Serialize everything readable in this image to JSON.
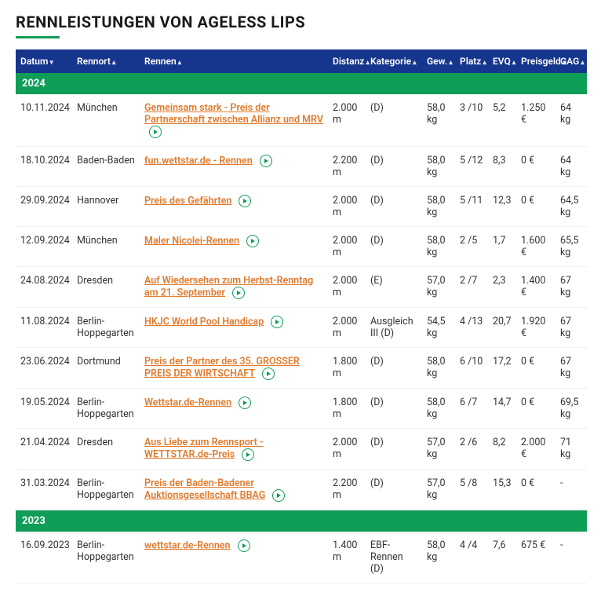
{
  "title": "RENNLEISTUNGEN VON AGELESS LIPS",
  "colors": {
    "header_bg": "#16358c",
    "accent": "#0f9d58",
    "link": "#e07b2e",
    "text": "#333333",
    "border": "#f0f0f0",
    "bg": "#ffffff"
  },
  "columns": [
    {
      "key": "datum",
      "label": "Datum",
      "sortDir": "desc"
    },
    {
      "key": "rennort",
      "label": "Rennort",
      "sortDir": "asc"
    },
    {
      "key": "rennen",
      "label": "Rennen",
      "sortDir": "asc"
    },
    {
      "key": "distanz",
      "label": "Distanz",
      "sortDir": "asc"
    },
    {
      "key": "kategorie",
      "label": "Kategorie",
      "sortDir": "asc"
    },
    {
      "key": "gew",
      "label": "Gew.",
      "sortDir": "asc"
    },
    {
      "key": "platz",
      "label": "Platz",
      "sortDir": "asc"
    },
    {
      "key": "evq",
      "label": "EVQ",
      "sortDir": "asc"
    },
    {
      "key": "preisgeld",
      "label": "Preisgeld",
      "sortDir": "asc"
    },
    {
      "key": "gag",
      "label": "GAG",
      "sortDir": "asc"
    }
  ],
  "groups": [
    {
      "year": "2024",
      "rows": [
        {
          "datum": "10.11.2024",
          "rennort": "München",
          "rennen": "Gemeinsam stark - Preis der Partnerschaft zwischen Allianz und MRV",
          "distanz": "2.000 m",
          "kategorie": "(D)",
          "gew": "58,0 kg",
          "platz": "3 /10",
          "evq": "5,2",
          "preisgeld": "1.250 €",
          "gag": "64 kg",
          "video": true
        },
        {
          "datum": "18.10.2024",
          "rennort": "Baden-Baden",
          "rennen": "fun.wettstar.de - Rennen",
          "distanz": "2.200 m",
          "kategorie": "(D)",
          "gew": "58,0 kg",
          "platz": "5 /12",
          "evq": "8,3",
          "preisgeld": "0 €",
          "gag": "64 kg",
          "video": true
        },
        {
          "datum": "29.09.2024",
          "rennort": "Hannover",
          "rennen": "Preis des Gefährten",
          "distanz": "2.000 m",
          "kategorie": "(D)",
          "gew": "58,0 kg",
          "platz": "5 /11",
          "evq": "12,3",
          "preisgeld": "0 €",
          "gag": "64,5 kg",
          "video": true
        },
        {
          "datum": "12.09.2024",
          "rennort": "München",
          "rennen": "Maler Nicolei-Rennen",
          "distanz": "2.000 m",
          "kategorie": "(D)",
          "gew": "58,0 kg",
          "platz": "2 /5",
          "evq": "1,7",
          "preisgeld": "1.600 €",
          "gag": "65,5 kg",
          "video": true
        },
        {
          "datum": "24.08.2024",
          "rennort": "Dresden",
          "rennen": "Auf Wiedersehen zum Herbst-Renntag am 21. September",
          "distanz": "2.000 m",
          "kategorie": "(E)",
          "gew": "57,0 kg",
          "platz": "2 /7",
          "evq": "2,3",
          "preisgeld": "1.400 €",
          "gag": "67 kg",
          "video": true
        },
        {
          "datum": "11.08.2024",
          "rennort": "Berlin-Hoppegarten",
          "rennen": "HKJC World Pool Handicap",
          "distanz": "2.000 m",
          "kategorie": "Ausgleich III (D)",
          "gew": "54,5 kg",
          "platz": "4 /13",
          "evq": "20,7",
          "preisgeld": "1.920 €",
          "gag": "67 kg",
          "video": true
        },
        {
          "datum": "23.06.2024",
          "rennort": "Dortmund",
          "rennen": "Preis der Partner des 35. GROSSER PREIS DER WIRTSCHAFT",
          "distanz": "1.800 m",
          "kategorie": "(D)",
          "gew": "58,0 kg",
          "platz": "6 /10",
          "evq": "17,2",
          "preisgeld": "0 €",
          "gag": "67 kg",
          "video": true
        },
        {
          "datum": "19.05.2024",
          "rennort": "Berlin-Hoppegarten",
          "rennen": "Wettstar.de-Rennen",
          "distanz": "1.800 m",
          "kategorie": "(D)",
          "gew": "58,0 kg",
          "platz": "6 /7",
          "evq": "14,7",
          "preisgeld": "0 €",
          "gag": "69,5 kg",
          "video": true
        },
        {
          "datum": "21.04.2024",
          "rennort": "Dresden",
          "rennen": "Aus Liebe zum Rennsport - WETTSTAR.de-Preis",
          "distanz": "2.000 m",
          "kategorie": "(D)",
          "gew": "57,0 kg",
          "platz": "2 /6",
          "evq": "8,2",
          "preisgeld": "2.000 €",
          "gag": "71 kg",
          "video": true
        },
        {
          "datum": "31.03.2024",
          "rennort": "Berlin-Hoppegarten",
          "rennen": "Preis der Baden-Badener Auktionsgesellschaft BBAG",
          "distanz": "2.200 m",
          "kategorie": "(D)",
          "gew": "57,0 kg",
          "platz": "5 /8",
          "evq": "15,3",
          "preisgeld": "0 €",
          "gag": "-",
          "video": true
        }
      ]
    },
    {
      "year": "2023",
      "rows": [
        {
          "datum": "16.09.2023",
          "rennort": "Berlin-Hoppegarten",
          "rennen": "wettstar.de-Rennen",
          "distanz": "1.400 m",
          "kategorie": "EBF-Rennen (D)",
          "gew": "58,0 kg",
          "platz": "4 /4",
          "evq": "7,6",
          "preisgeld": "675 €",
          "gag": "-",
          "video": true
        }
      ]
    }
  ]
}
